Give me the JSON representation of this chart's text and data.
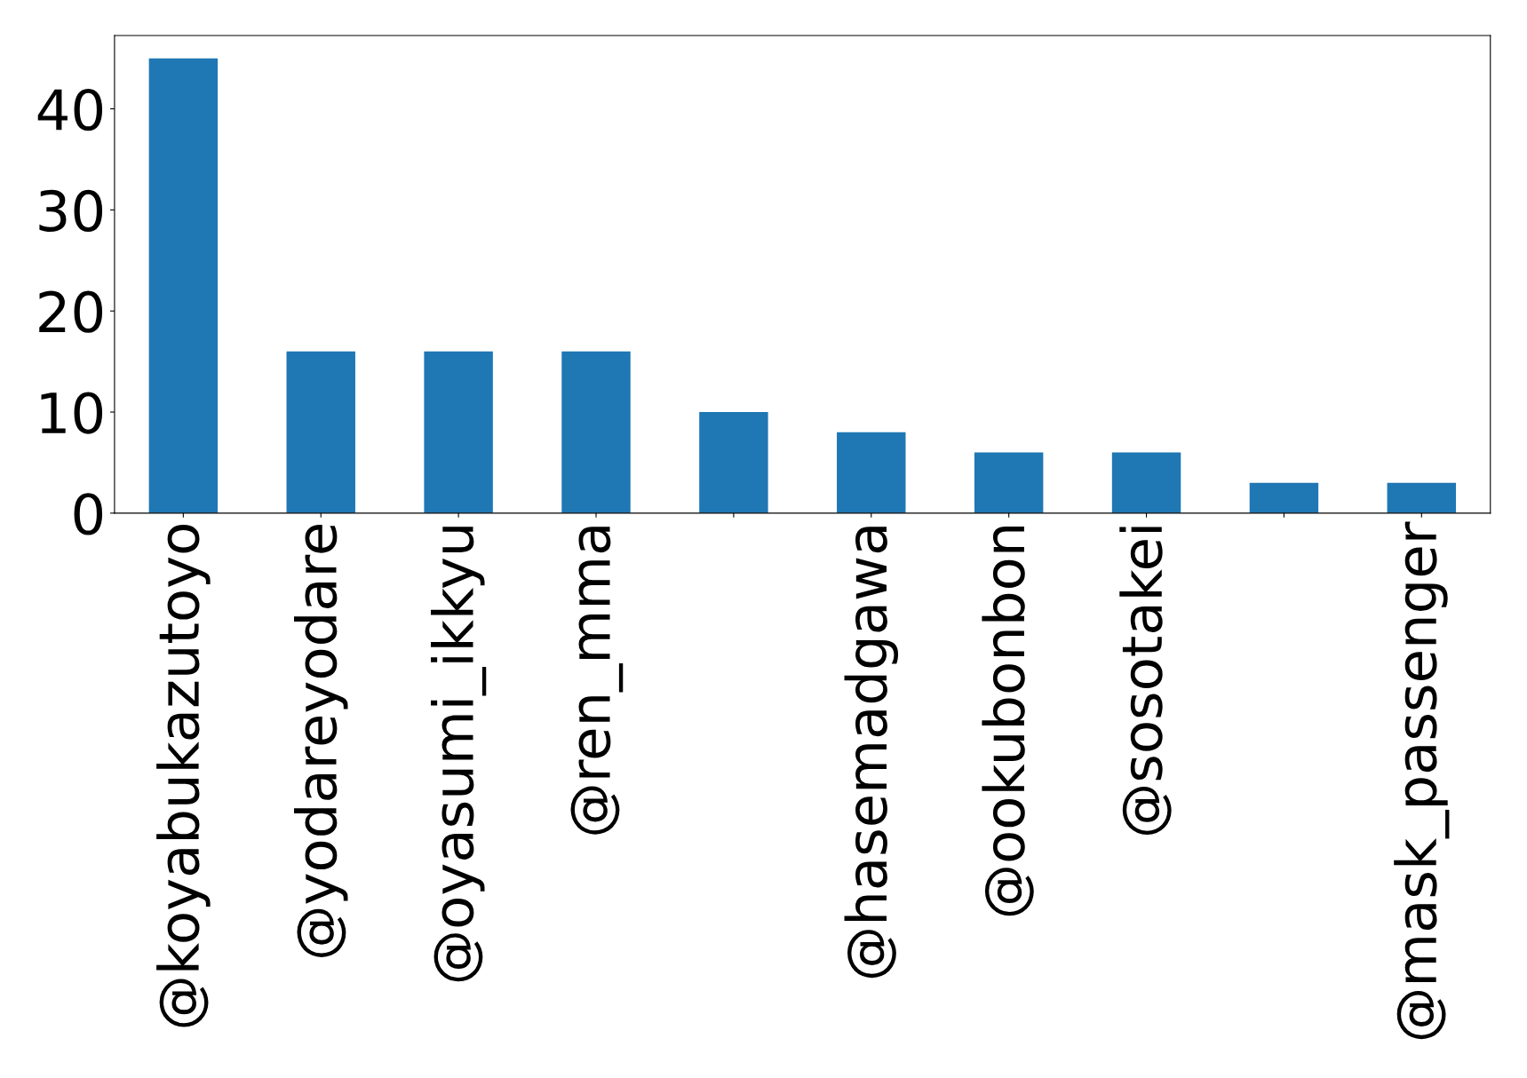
{
  "chart_data": {
    "type": "bar",
    "categories": [
      "@koyabukazutoyo",
      "@yodareyodare",
      "@oyasumi_ikkyu",
      "@ren_mma",
      null,
      "@hasemadgawa",
      "@ookubonbon",
      "@sosotakei",
      null,
      "@mask_passenger"
    ],
    "values": [
      45,
      16,
      16,
      16,
      10,
      8,
      6,
      6,
      3,
      3
    ],
    "color": "#1f77b4",
    "ylim": [
      0,
      47.25
    ],
    "yticks": [
      0,
      10,
      20,
      30,
      40
    ],
    "grid": false,
    "legend": false
  }
}
